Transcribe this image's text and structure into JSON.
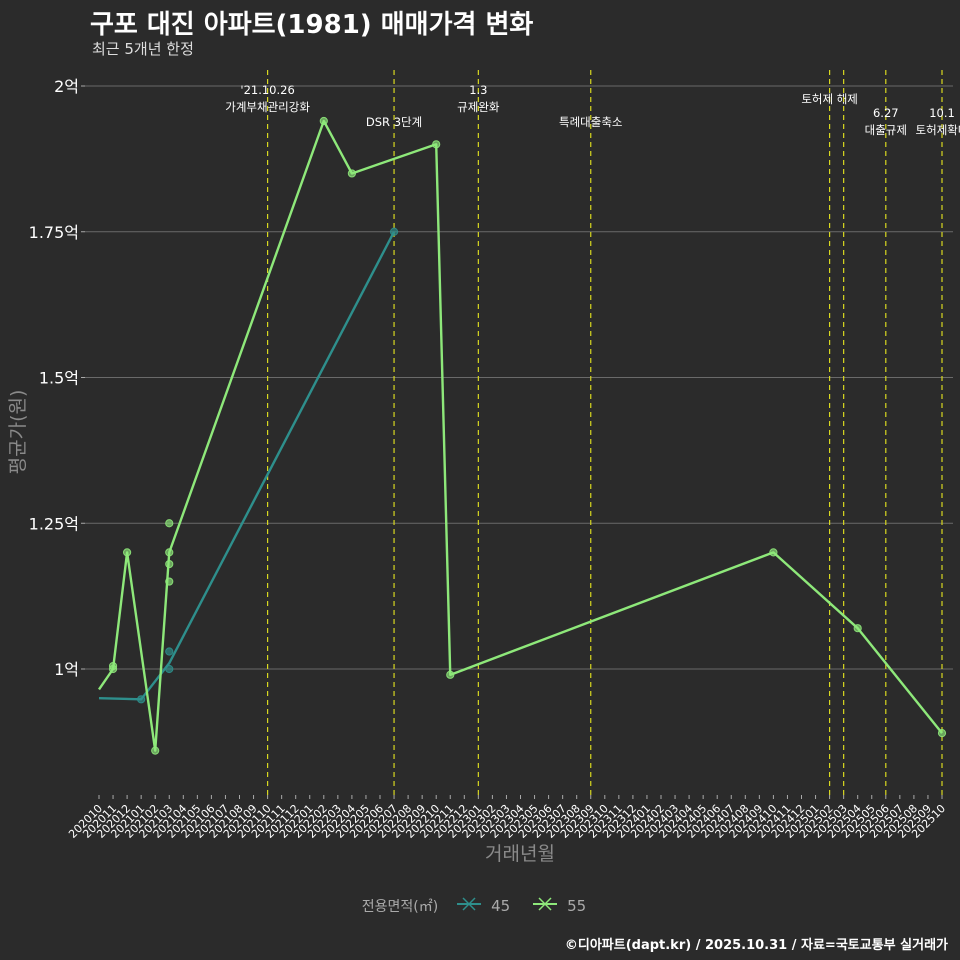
{
  "title": "구포 대진 아파트(1981) 매매가격 변화",
  "subtitle": "최근 5개년 한정",
  "caption": "©디아파트(dapt.kr) / 2025.10.31 / 자료=국토교통부 실거래가",
  "chart_data": {
    "type": "line",
    "xlabel": "거래년월",
    "ylabel": "평균가(원)",
    "ylim": [
      0.78,
      2.02
    ],
    "y_ticks": [
      {
        "value": 1.0,
        "label": "1억"
      },
      {
        "value": 1.25,
        "label": "1.25억"
      },
      {
        "value": 1.5,
        "label": "1.5억"
      },
      {
        "value": 1.75,
        "label": "1.75억"
      },
      {
        "value": 2.0,
        "label": "2억"
      }
    ],
    "categories": [
      "202010",
      "202011",
      "202012",
      "202101",
      "202102",
      "202103",
      "202104",
      "202105",
      "202106",
      "202107",
      "202108",
      "202109",
      "202110",
      "202111",
      "202112",
      "202201",
      "202202",
      "202203",
      "202204",
      "202205",
      "202206",
      "202207",
      "202208",
      "202209",
      "202210",
      "202211",
      "202212",
      "202301",
      "202302",
      "202303",
      "202304",
      "202305",
      "202306",
      "202307",
      "202308",
      "202309",
      "202310",
      "202311",
      "202312",
      "202401",
      "202402",
      "202403",
      "202404",
      "202405",
      "202406",
      "202407",
      "202408",
      "202409",
      "202410",
      "202411",
      "202412",
      "202501",
      "202502",
      "202503",
      "202504",
      "202505",
      "202506",
      "202507",
      "202508",
      "202509",
      "202510"
    ],
    "legend_title": "전용면적(㎡)",
    "series": [
      {
        "name": "45",
        "color": "#2e8f8c",
        "line": [
          [
            0,
            0.95
          ],
          [
            3,
            0.948
          ],
          [
            5,
            1.01
          ],
          [
            21,
            1.75
          ]
        ],
        "points": [
          [
            3,
            0.948
          ],
          [
            5,
            1.03
          ],
          [
            5,
            1.0
          ],
          [
            21,
            1.75
          ]
        ]
      },
      {
        "name": "55",
        "color": "#8ee87a",
        "line": [
          [
            0,
            0.965
          ],
          [
            1,
            1.0
          ],
          [
            2,
            1.2
          ],
          [
            4,
            0.86
          ],
          [
            5,
            1.2
          ],
          [
            16,
            1.94
          ],
          [
            18,
            1.85
          ],
          [
            24,
            1.9
          ],
          [
            25,
            0.99
          ],
          [
            48,
            1.2
          ],
          [
            54,
            1.07
          ],
          [
            60,
            0.89
          ]
        ],
        "points": [
          [
            1,
            1.0
          ],
          [
            1,
            1.005
          ],
          [
            2,
            1.2
          ],
          [
            4,
            0.86
          ],
          [
            5,
            1.25
          ],
          [
            5,
            1.2
          ],
          [
            5,
            1.18
          ],
          [
            5,
            1.15
          ],
          [
            16,
            1.94
          ],
          [
            18,
            1.85
          ],
          [
            24,
            1.9
          ],
          [
            25,
            0.99
          ],
          [
            48,
            1.2
          ],
          [
            54,
            1.07
          ],
          [
            60,
            0.89
          ]
        ]
      }
    ],
    "events": [
      {
        "x": 12,
        "lines": [
          "'21.10.26",
          "가계부채관리강화"
        ],
        "row": 0
      },
      {
        "x": 21,
        "lines": [
          "DSR 3단계"
        ],
        "row": 1
      },
      {
        "x": 27,
        "lines": [
          "1.3",
          "규제완화"
        ],
        "row": 0
      },
      {
        "x": 35,
        "lines": [
          "특례대출축소"
        ],
        "row": 1
      },
      {
        "x": 52,
        "lines": [
          "토허제 해제"
        ],
        "row": 0.3
      },
      {
        "x": 53,
        "lines": [],
        "row": 0
      },
      {
        "x": 56,
        "lines": [
          "6.27",
          "대출규제"
        ],
        "row": 1
      },
      {
        "x": 60,
        "lines": [
          "10.1",
          "토허제확대"
        ],
        "row": 1
      }
    ]
  }
}
